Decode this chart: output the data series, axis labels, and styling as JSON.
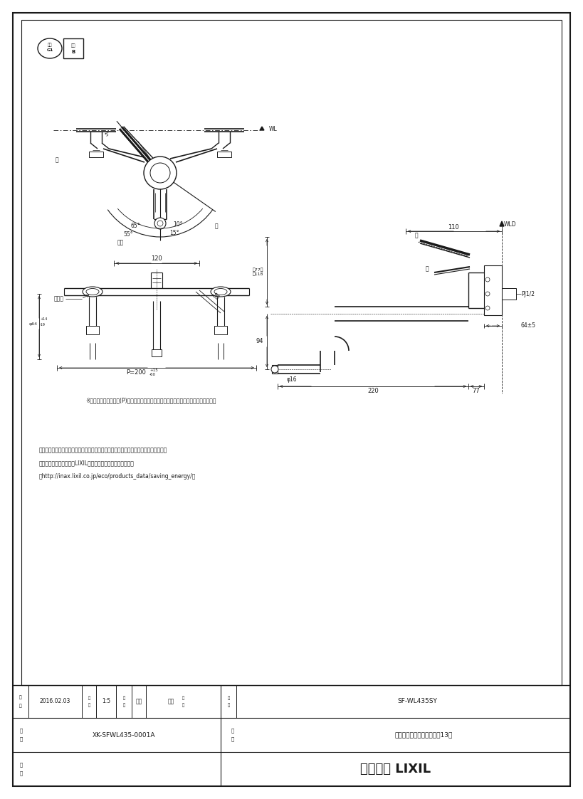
{
  "page_bg": "#ffffff",
  "notes": [
    "・流量調節栓は取付脂に付いています。取替えの際は、取付脂ごと交換してください。",
    "・節湯記号については、LIXILホームページを参照ください。",
    "（http://inax.lixil.co.jp/eco/products_data/saving_energy/）"
  ],
  "table_date": "2016.02.03",
  "table_scale": "1:5",
  "table_drawn": "宮本",
  "table_checked": "池川",
  "table_product_no": "SF-WL435SY",
  "table_drawing_no": "XK-SFWL435-0001A",
  "table_product_name": "シングルレバー混合水栓（13）",
  "table_company": "株式会社 LIXIL",
  "dim_note": "※印寸法は配管ピッチ(P)が最大～最小の場合を（標準寸法　山形）で示しています。",
  "eco1_text1": "節湯",
  "eco1_text2": "G1",
  "eco2_text1": "節湯",
  "eco2_text2": "B",
  "wl_label": "WL",
  "wld_label": "WLD",
  "pj_label": "PJ1/2",
  "yu_label": "湯",
  "mizu_label": "水",
  "kongo_label": "混合",
  "torifuke_label": "取付脂",
  "kai_label": "開",
  "hei_label": "閉"
}
